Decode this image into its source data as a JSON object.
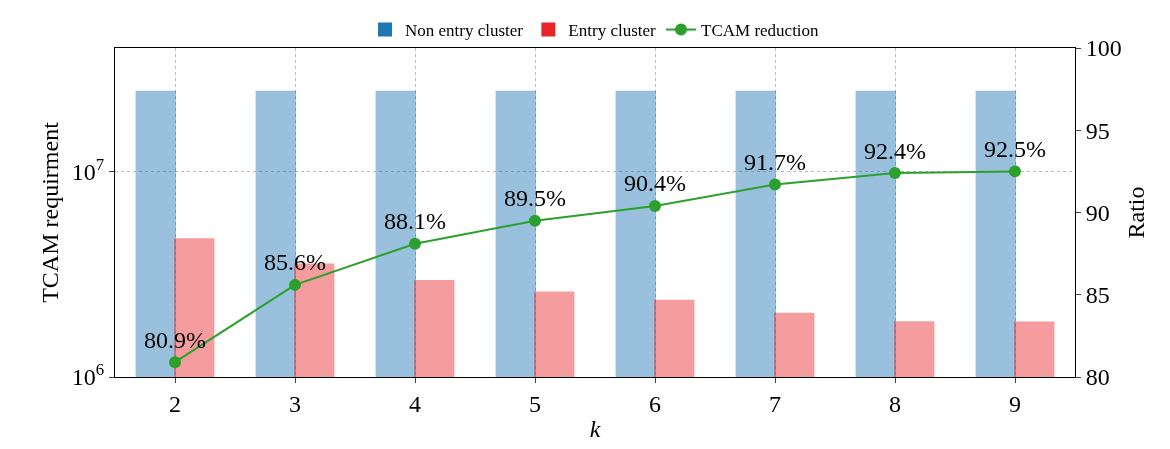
{
  "chart_data": {
    "type": "bar",
    "categories": [
      "2",
      "3",
      "4",
      "5",
      "6",
      "7",
      "8",
      "9"
    ],
    "xlabel": "k",
    "ylabel": "TCAM requirment",
    "y2label": "Ratio",
    "series": [
      {
        "name": "Non entry cluster",
        "color": "#1f77b4",
        "values": [
          24500000,
          24500000,
          24500000,
          24500000,
          24500000,
          24500000,
          24500000,
          24500000
        ]
      },
      {
        "name": "Entry cluster",
        "color": "#e8262a",
        "values": [
          4690000,
          3530000,
          2930000,
          2580000,
          2350000,
          2030000,
          1850000,
          1840000
        ]
      },
      {
        "name": "TCAM reduction",
        "type": "line",
        "axis": "y2",
        "color": "#2ca02c",
        "marker": "circle",
        "values": [
          80.9,
          85.6,
          88.1,
          89.5,
          90.4,
          91.7,
          92.4,
          92.5
        ],
        "value_labels": [
          "80.9%",
          "85.6%",
          "88.1%",
          "89.5%",
          "90.4%",
          "91.7%",
          "92.4%",
          "92.5%"
        ]
      }
    ],
    "log": "y",
    "ylim": [
      1000000,
      40000000
    ],
    "yticks": [
      {
        "value": 1000000,
        "label": "10$^{6}$"
      },
      {
        "value": 10000000,
        "label": "10$^{7}$"
      }
    ],
    "y2lim": [
      80,
      100
    ],
    "y2ticks": [
      80,
      85,
      90,
      95,
      100
    ],
    "grid": true,
    "legend": "top"
  }
}
